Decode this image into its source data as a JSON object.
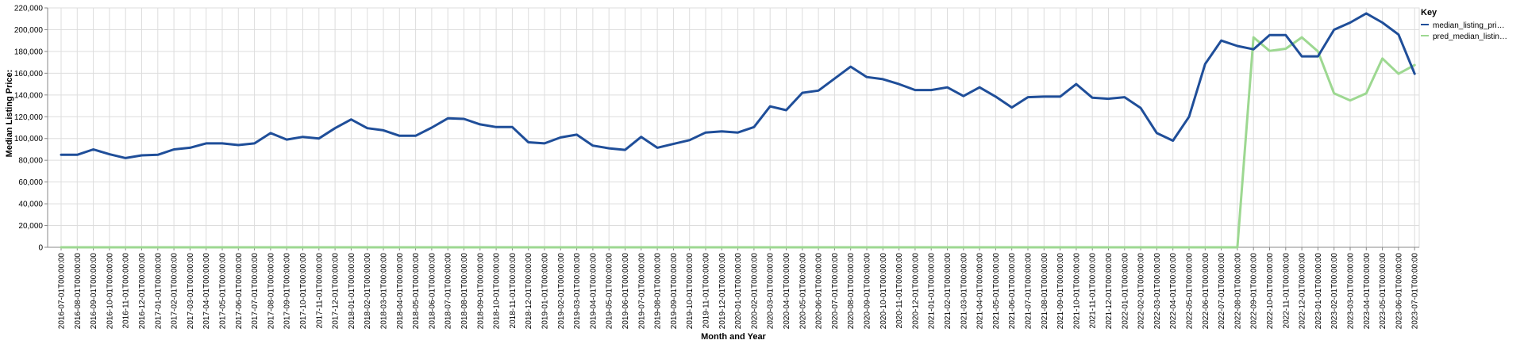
{
  "chart_data": {
    "type": "line",
    "xlabel": "Month and Year",
    "ylabel": "Median Listing Price:",
    "ylim": [
      0,
      220000
    ],
    "yticks": [
      "0",
      "20,000",
      "40,000",
      "60,000",
      "80,000",
      "100,000",
      "120,000",
      "140,000",
      "160,000",
      "180,000",
      "200,000",
      "220,000"
    ],
    "grid": true,
    "legend": {
      "title": "Key",
      "placement": "right",
      "entries": [
        "median_listing_pri…",
        "pred_median_listin…"
      ]
    },
    "x": [
      "2016-07-01T00:00:00",
      "2016-08-01T00:00:00",
      "2016-09-01T00:00:00",
      "2016-10-01T00:00:00",
      "2016-11-01T00:00:00",
      "2016-12-01T00:00:00",
      "2017-01-01T00:00:00",
      "2017-02-01T00:00:00",
      "2017-03-01T00:00:00",
      "2017-04-01T00:00:00",
      "2017-05-01T00:00:00",
      "2017-06-01T00:00:00",
      "2017-07-01T00:00:00",
      "2017-08-01T00:00:00",
      "2017-09-01T00:00:00",
      "2017-10-01T00:00:00",
      "2017-11-01T00:00:00",
      "2017-12-01T00:00:00",
      "2018-01-01T00:00:00",
      "2018-02-01T00:00:00",
      "2018-03-01T00:00:00",
      "2018-04-01T00:00:00",
      "2018-05-01T00:00:00",
      "2018-06-01T00:00:00",
      "2018-07-01T00:00:00",
      "2018-08-01T00:00:00",
      "2018-09-01T00:00:00",
      "2018-10-01T00:00:00",
      "2018-11-01T00:00:00",
      "2018-12-01T00:00:00",
      "2019-01-01T00:00:00",
      "2019-02-01T00:00:00",
      "2019-03-01T00:00:00",
      "2019-04-01T00:00:00",
      "2019-05-01T00:00:00",
      "2019-06-01T00:00:00",
      "2019-07-01T00:00:00",
      "2019-08-01T00:00:00",
      "2019-09-01T00:00:00",
      "2019-10-01T00:00:00",
      "2019-11-01T00:00:00",
      "2019-12-01T00:00:00",
      "2020-01-01T00:00:00",
      "2020-02-01T00:00:00",
      "2020-03-01T00:00:00",
      "2020-04-01T00:00:00",
      "2020-05-01T00:00:00",
      "2020-06-01T00:00:00",
      "2020-07-01T00:00:00",
      "2020-08-01T00:00:00",
      "2020-09-01T00:00:00",
      "2020-10-01T00:00:00",
      "2020-11-01T00:00:00",
      "2020-12-01T00:00:00",
      "2021-01-01T00:00:00",
      "2021-02-01T00:00:00",
      "2021-03-01T00:00:00",
      "2021-04-01T00:00:00",
      "2021-05-01T00:00:00",
      "2021-06-01T00:00:00",
      "2021-07-01T00:00:00",
      "2021-08-01T00:00:00",
      "2021-09-01T00:00:00",
      "2021-10-01T00:00:00",
      "2021-11-01T00:00:00",
      "2021-12-01T00:00:00",
      "2022-01-01T00:00:00",
      "2022-02-01T00:00:00",
      "2022-03-01T00:00:00",
      "2022-04-01T00:00:00",
      "2022-05-01T00:00:00",
      "2022-06-01T00:00:00",
      "2022-07-01T00:00:00",
      "2022-08-01T00:00:00",
      "2022-09-01T00:00:00",
      "2022-10-01T00:00:00",
      "2022-11-01T00:00:00",
      "2022-12-01T00:00:00",
      "2023-01-01T00:00:00",
      "2023-02-01T00:00:00",
      "2023-03-01T00:00:00",
      "2023-04-01T00:00:00",
      "2023-05-01T00:00:00",
      "2023-06-01T00:00:00",
      "2023-07-01T00:00:00"
    ],
    "series": [
      {
        "name": "median_listing_pri…",
        "color": "#1f4e99",
        "values": [
          85000,
          85000,
          90000,
          85500,
          82000,
          84500,
          85000,
          90000,
          91500,
          95500,
          95500,
          94000,
          95500,
          105000,
          99000,
          101500,
          100000,
          109500,
          117500,
          109500,
          107500,
          102500,
          102500,
          110000,
          118500,
          118000,
          113000,
          110500,
          110500,
          96500,
          95500,
          101000,
          103500,
          93500,
          91000,
          89500,
          101500,
          91500,
          95000,
          98500,
          105500,
          106500,
          105500,
          110500,
          129500,
          126000,
          142000,
          144000,
          155000,
          166000,
          156500,
          154500,
          150000,
          144500,
          144500,
          147000,
          139000,
          147000,
          138500,
          128500,
          138000,
          138500,
          138500,
          150000,
          137500,
          136500,
          138000,
          128000,
          105000,
          98000,
          120000,
          168500,
          190000,
          185000,
          182000,
          195000,
          195000,
          175500,
          175500,
          200000,
          206500,
          215000,
          206500,
          195500,
          159500
        ]
      },
      {
        "name": "pred_median_listin…",
        "color": "#9dd891",
        "values": [
          0,
          0,
          0,
          0,
          0,
          0,
          0,
          0,
          0,
          0,
          0,
          0,
          0,
          0,
          0,
          0,
          0,
          0,
          0,
          0,
          0,
          0,
          0,
          0,
          0,
          0,
          0,
          0,
          0,
          0,
          0,
          0,
          0,
          0,
          0,
          0,
          0,
          0,
          0,
          0,
          0,
          0,
          0,
          0,
          0,
          0,
          0,
          0,
          0,
          0,
          0,
          0,
          0,
          0,
          0,
          0,
          0,
          0,
          0,
          0,
          0,
          0,
          0,
          0,
          0,
          0,
          0,
          0,
          0,
          0,
          0,
          0,
          0,
          0,
          193000,
          180500,
          182500,
          193000,
          180000,
          141500,
          135000,
          141500,
          173500,
          159500,
          167500
        ]
      }
    ]
  }
}
